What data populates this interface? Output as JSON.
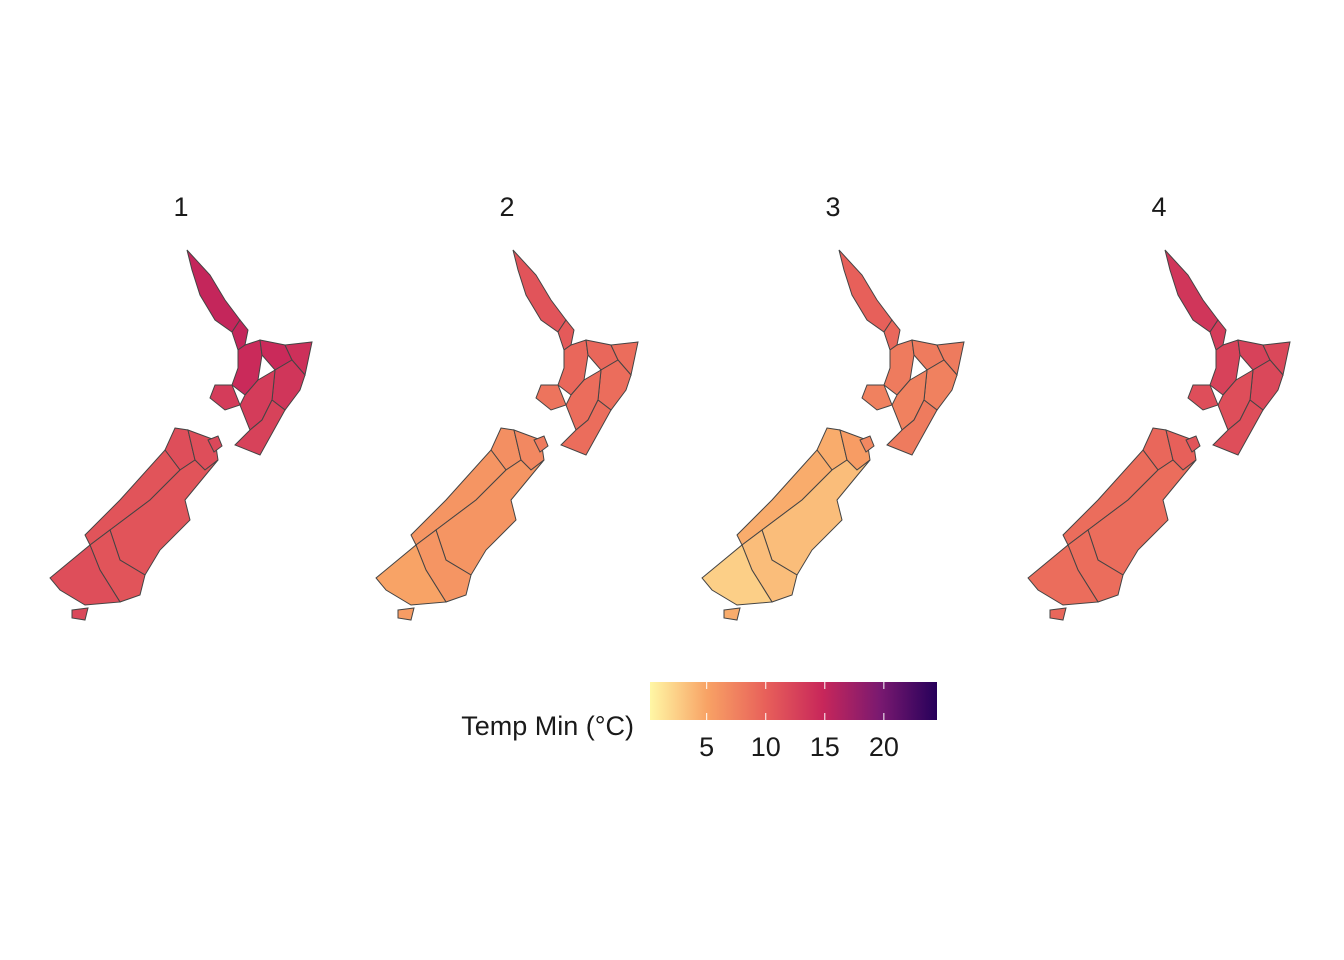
{
  "chart_data": {
    "type": "choropleth",
    "legend_title": "Temp Min (°C)",
    "colorbar_lim": [
      0.2,
      24.5
    ],
    "colorbar_ticks": [
      5,
      10,
      15,
      20
    ],
    "colors": [
      "#fff7a5",
      "#f8a265",
      "#e8615a",
      "#c8275a",
      "#7a1970",
      "#26005a"
    ],
    "facets": [
      {
        "label": "1",
        "values": [
          15,
          15,
          14.5,
          14.5,
          14,
          13.5,
          13,
          13,
          12.5,
          11.5,
          11.5,
          11,
          11,
          11,
          11.5,
          12,
          12
        ]
      },
      {
        "label": "2",
        "values": [
          11,
          10.5,
          9.5,
          9.5,
          9,
          9,
          9,
          8.5,
          9,
          6.5,
          7,
          6,
          6,
          6,
          5,
          5.5,
          8
        ]
      },
      {
        "label": "3",
        "values": [
          10,
          9.5,
          8,
          8,
          8,
          7.5,
          7.5,
          7.5,
          8,
          4.5,
          5.5,
          4.5,
          3.5,
          3.5,
          2.5,
          4.5,
          7
        ]
      },
      {
        "label": "4",
        "values": [
          13.5,
          13,
          12.5,
          12.5,
          12,
          12,
          11.5,
          11.5,
          11.5,
          9.5,
          10,
          9,
          9,
          9,
          9,
          9.5,
          11
        ]
      }
    ]
  }
}
